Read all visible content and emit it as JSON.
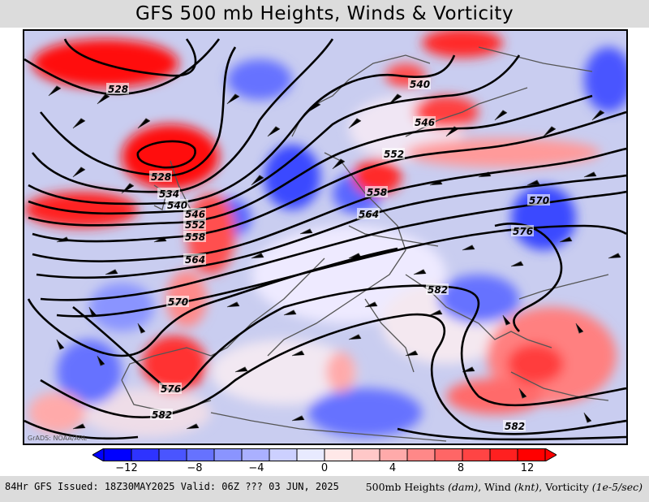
{
  "header": {
    "title": "GFS 500 mb Heights, Winds & Vorticity"
  },
  "map": {
    "credit": "GrADS: NOAA/ARL",
    "contour_labels": [
      "528",
      "528",
      "534",
      "540",
      "546",
      "552",
      "558",
      "564",
      "570",
      "576",
      "582",
      "540",
      "546",
      "552",
      "558",
      "564",
      "570",
      "576",
      "582",
      "582",
      "582"
    ],
    "colors": {
      "positive_vorticity": "#ff0000",
      "negative_vorticity": "#0000ff",
      "background_light": "#f2f2ff",
      "height_contours": "#000000",
      "coastlines": "#555555"
    }
  },
  "colorbar": {
    "ticks": [
      "−12",
      "−8",
      "−4",
      "0",
      "4",
      "8",
      "12"
    ],
    "colors": [
      "#0000ff",
      "#2e33ff",
      "#4a55ff",
      "#6672ff",
      "#8a94ff",
      "#aab0ff",
      "#ccd0ff",
      "#e8eaff",
      "#ffe8e8",
      "#ffc8c8",
      "#ffaaaa",
      "#ff8888",
      "#ff6666",
      "#ff4444",
      "#ff2020",
      "#ff0000"
    ]
  },
  "footer": {
    "issued": "84Hr GFS Issued: 18Z30MAY2025 Valid: 06Z ??? 03 JUN, 2025",
    "fields_prefix": "500mb Heights",
    "heights_unit": "(dam)",
    "wind_label": "Wind",
    "wind_unit": "(knt)",
    "vort_label": "Vorticity",
    "vort_unit": "(1e-5/sec)"
  }
}
